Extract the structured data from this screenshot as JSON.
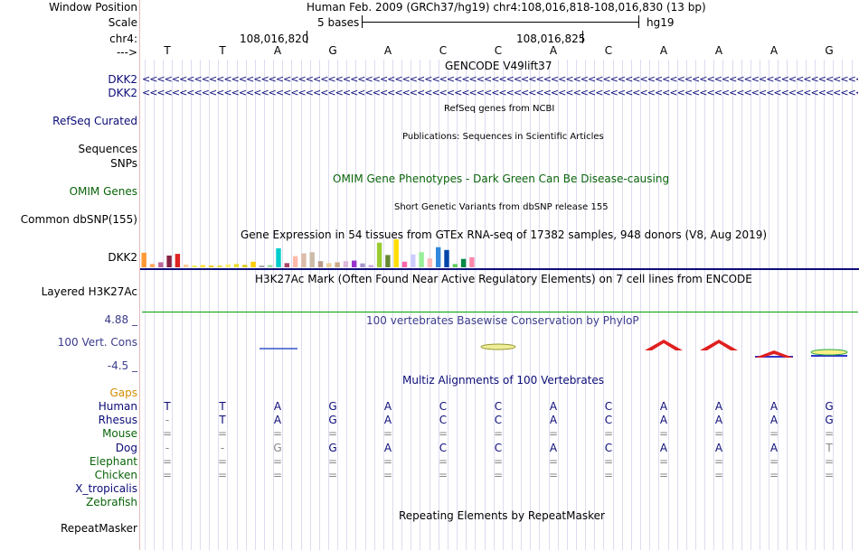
{
  "header": {
    "window_position_label": "Window Position",
    "assembly_and_position": "Human Feb. 2009 (GRCh37/hg19)   chr4:108,016,818-108,016,830 (13 bp)",
    "scale_label": "Scale",
    "scale_value": "5 bases",
    "scale_db": "hg19",
    "chrom_label": "chr4:",
    "strand_label": "--->",
    "pos_tick_1": "108,016,820",
    "pos_tick_2": "108,016,825"
  },
  "ref_bases": [
    "T",
    "T",
    "A",
    "G",
    "A",
    "C",
    "C",
    "A",
    "C",
    "A",
    "A",
    "A",
    "G"
  ],
  "tracks": {
    "gencode": {
      "title": "GENCODE V49lift37",
      "rows": [
        "DKK2",
        "DKK2"
      ],
      "arrows": "<<<<<<<<<<<<<<<<<<<<<<<<<<<<<<<<<<<<<<<<<<<<<<<<<<<<<<<<<<<<<<<<<<<<<<<<<<<<<<<<<<<<<<<<<<<<<<<<<<<<<<<<<<<<<<<<<<<<<<<<<<<<<<<<<<<<<<<<<<"
    },
    "refseq": {
      "title": "RefSeq genes from NCBI",
      "label": "RefSeq Curated"
    },
    "pubs": {
      "title": "Publications: Sequences in Scientific Articles",
      "label": "Sequences"
    },
    "snps": {
      "label": "SNPs"
    },
    "omim": {
      "title": "OMIM Gene Phenotypes - Dark Green Can Be Disease-causing",
      "label": "OMIM Genes"
    },
    "dbsnp": {
      "title": "Short Genetic Variants from dbSNP release 155",
      "label": "Common dbSNP(155)"
    },
    "gtex": {
      "title": "Gene Expression in 54 tissues from GTEx RNA-seq of 17382 samples, 948 donors (V8, Aug 2019)",
      "label": "DKK2",
      "bars": [
        {
          "v": 0.52,
          "c": "#ff9933"
        },
        {
          "v": 0.12,
          "c": "#ffaa66"
        },
        {
          "v": 0.18,
          "c": "#bb6699"
        },
        {
          "v": 0.42,
          "c": "#882244"
        },
        {
          "v": 0.48,
          "c": "#dd2222"
        },
        {
          "v": 0.1,
          "c": "#ffcc99"
        },
        {
          "v": 0.06,
          "c": "#eeee55"
        },
        {
          "v": 0.08,
          "c": "#ffdd33"
        },
        {
          "v": 0.05,
          "c": "#eecc22"
        },
        {
          "v": 0.07,
          "c": "#eedd44"
        },
        {
          "v": 0.1,
          "c": "#ffee66"
        },
        {
          "v": 0.12,
          "c": "#eedd33"
        },
        {
          "v": 0.09,
          "c": "#ddcc22"
        },
        {
          "v": 0.2,
          "c": "#ffcc00"
        },
        {
          "v": 0.05,
          "c": "#aaaaaa"
        },
        {
          "v": 0.08,
          "c": "#99dd99"
        },
        {
          "v": 0.68,
          "c": "#00cccc"
        },
        {
          "v": 0.15,
          "c": "#aa4466"
        },
        {
          "v": 0.4,
          "c": "#ffbbaa"
        },
        {
          "v": 0.5,
          "c": "#ddbbaa"
        },
        {
          "v": 0.54,
          "c": "#ccbbaa"
        },
        {
          "v": 0.22,
          "c": "#bb9988"
        },
        {
          "v": 0.15,
          "c": "#eecc99"
        },
        {
          "v": 0.18,
          "c": "#ccaa88"
        },
        {
          "v": 0.22,
          "c": "#ddbbdd"
        },
        {
          "v": 0.24,
          "c": "#9933cc"
        },
        {
          "v": 0.14,
          "c": "#aa99cc"
        },
        {
          "v": 0.08,
          "c": "#ccaadd"
        },
        {
          "v": 0.88,
          "c": "#99cc33"
        },
        {
          "v": 0.44,
          "c": "#668833"
        },
        {
          "v": 1.0,
          "c": "#ffdd00"
        },
        {
          "v": 0.2,
          "c": "#ff66aa"
        },
        {
          "v": 0.46,
          "c": "#ccccff"
        },
        {
          "v": 0.54,
          "c": "#99ee99"
        },
        {
          "v": 0.32,
          "c": "#ffbbbb"
        },
        {
          "v": 0.72,
          "c": "#3388dd"
        },
        {
          "v": 0.62,
          "c": "#0044aa"
        },
        {
          "v": 0.12,
          "c": "#66cc66"
        },
        {
          "v": 0.3,
          "c": "#008844"
        },
        {
          "v": 0.36,
          "c": "#ff88aa"
        }
      ]
    },
    "h3k27ac": {
      "title": "H3K27Ac Mark (Often Found Near Active Regulatory Elements) on 7 cell lines from ENCODE",
      "label": "Layered H3K27Ac"
    },
    "phylop": {
      "title": "100 vertebrates Basewise Conservation by PhyloP",
      "label": "100 Vert. Cons",
      "max": "4.88 _",
      "min": "-4.5 _",
      "bases": [
        {
          "i": 2,
          "kind": "line"
        },
        {
          "i": 6,
          "kind": "oval"
        },
        {
          "i": 9,
          "kind": "A"
        },
        {
          "i": 10,
          "kind": "A"
        },
        {
          "i": 11,
          "kind": "A2"
        },
        {
          "i": 12,
          "kind": "G"
        }
      ]
    },
    "multiz": {
      "title": "Multiz Alignments of 100 Vertebrates",
      "gaps_label": "Gaps",
      "species": [
        {
          "name": "Human",
          "bases": [
            "T",
            "T",
            "A",
            "G",
            "A",
            "C",
            "C",
            "A",
            "C",
            "A",
            "A",
            "A",
            "G"
          ]
        },
        {
          "name": "Rhesus",
          "bases": [
            "-",
            "T",
            "A",
            "G",
            "A",
            "C",
            "C",
            "A",
            "C",
            "A",
            "A",
            "A",
            "G"
          ]
        },
        {
          "name": "Mouse",
          "bases": [
            "=",
            "=",
            "=",
            "=",
            "=",
            "=",
            "=",
            "=",
            "=",
            "=",
            "=",
            "=",
            "="
          ]
        },
        {
          "name": "Dog",
          "bases": [
            "-",
            "-",
            "G",
            "G",
            "A",
            "C",
            "C",
            "A",
            "C",
            "A",
            "A",
            "A",
            "T"
          ]
        },
        {
          "name": "Elephant",
          "bases": [
            "=",
            "=",
            "=",
            "=",
            "=",
            "=",
            "=",
            "=",
            "=",
            "=",
            "=",
            "=",
            "="
          ]
        },
        {
          "name": "Chicken",
          "bases": [
            "=",
            "=",
            "=",
            "=",
            "=",
            "=",
            "=",
            "=",
            "=",
            "=",
            "=",
            "=",
            "="
          ]
        },
        {
          "name": "X_tropicalis",
          "bases": [
            "",
            "",
            "",
            "",
            "",
            "",
            "",
            "",
            "",
            "",
            "",
            "",
            ""
          ]
        },
        {
          "name": "Zebrafish",
          "bases": [
            "",
            "",
            "",
            "",
            "",
            "",
            "",
            "",
            "",
            "",
            "",
            "",
            ""
          ]
        }
      ]
    },
    "rmsk": {
      "title": "Repeating Elements by RepeatMasker",
      "label": "RepeatMasker"
    }
  },
  "colors": {
    "navy": "#0c0c78",
    "green": "#0a640a",
    "gaps": "#d28c00",
    "gridline": "#dcdcf0",
    "separator": "#e6b8b8",
    "h3k27ac_line": "#00a000",
    "phylop_text": "#3b3b8c",
    "conserved_base": "#e02020",
    "dimmed_base": "#888888"
  }
}
